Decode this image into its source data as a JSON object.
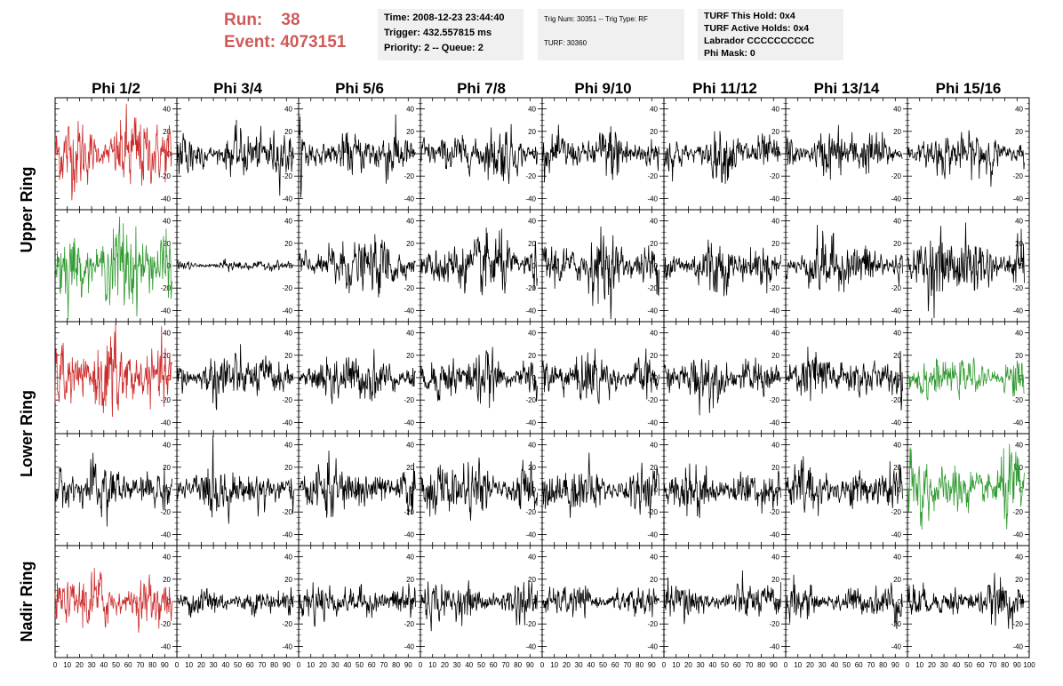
{
  "header": {
    "run_label": "Run:",
    "run_value": "38",
    "event_label": "Event:",
    "event_value": "4073151",
    "time": "Time: 2008-12-23 23:44:40",
    "trigger": "Trigger: 432.557815 ms",
    "priority": "Priority: 2 -- Queue: 2",
    "trig_num": "Trig Num: 30351 -- Trig Type: RF",
    "turf": "TURF: 30360",
    "turf_hold": "TURF This Hold: 0x4",
    "turf_active": "TURF Active Holds: 0x4",
    "labrador": "Labrador CCCCCCCCCC",
    "phi_mask": "Phi Mask: 0"
  },
  "colors": {
    "red": "#cc2a2a",
    "green": "#2f9a2f",
    "black": "#000000",
    "header_red": "#d05a5a"
  },
  "chart_data": {
    "type": "line",
    "columns": [
      "Phi 1/2",
      "Phi 3/4",
      "Phi 5/6",
      "Phi 7/8",
      "Phi 9/10",
      "Phi 11/12",
      "Phi 13/14",
      "Phi 15/16"
    ],
    "rows": [
      "Upper Ring",
      "Upper Ring",
      "Lower Ring",
      "Lower Ring",
      "Nadir Ring"
    ],
    "row_labels": [
      "Upper Ring",
      "Lower Ring",
      "Nadir Ring"
    ],
    "xlim": [
      0,
      100
    ],
    "ylim": [
      -50,
      50
    ],
    "xticks": [
      "0",
      "10",
      "20",
      "30",
      "40",
      "50",
      "60",
      "70",
      "80",
      "90",
      "100"
    ],
    "yticks": [
      "40",
      "20",
      "0",
      "-20",
      "-40"
    ],
    "panel_colors": [
      [
        "red",
        "black",
        "black",
        "black",
        "black",
        "black",
        "black",
        "black"
      ],
      [
        "green",
        "black",
        "black",
        "black",
        "black",
        "black",
        "black",
        "black"
      ],
      [
        "red",
        "black",
        "black",
        "black",
        "black",
        "black",
        "black",
        "green"
      ],
      [
        "black",
        "black",
        "black",
        "black",
        "black",
        "black",
        "black",
        "green"
      ],
      [
        "red",
        "black",
        "black",
        "black",
        "black",
        "black",
        "black",
        "black"
      ]
    ],
    "panel_amplitudes": [
      [
        22,
        14,
        14,
        14,
        14,
        13,
        14,
        13
      ],
      [
        24,
        3,
        16,
        18,
        17,
        15,
        16,
        19
      ],
      [
        23,
        15,
        15,
        14,
        14,
        14,
        15,
        11
      ],
      [
        15,
        14,
        15,
        15,
        14,
        14,
        14,
        18
      ],
      [
        16,
        9,
        11,
        11,
        9,
        11,
        10,
        11
      ]
    ]
  }
}
